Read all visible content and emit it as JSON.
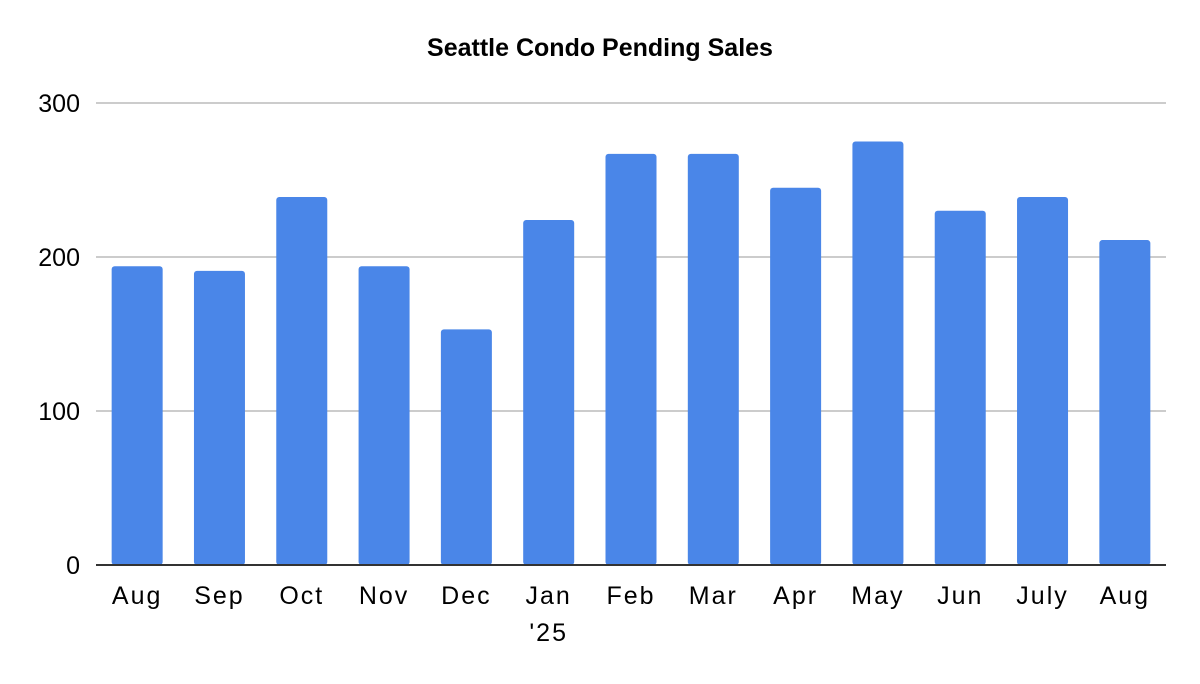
{
  "chart_data": {
    "type": "bar",
    "title": "Seattle Condo Pending Sales",
    "xlabel": "",
    "ylabel": "",
    "categories": [
      "Aug",
      "Sep",
      "Oct",
      "Nov",
      "Dec",
      "Jan\n'25",
      "Feb",
      "Mar",
      "Apr",
      "May",
      "Jun",
      "July",
      "Aug"
    ],
    "values": [
      194,
      191,
      239,
      194,
      153,
      224,
      267,
      267,
      245,
      275,
      230,
      239,
      211
    ],
    "ylim": [
      0,
      300
    ],
    "yticks": [
      0,
      100,
      200,
      300
    ],
    "grid": true,
    "legend": "none",
    "bar_color": "#4a86e8",
    "gridline_color": "#cccccc",
    "axis_color": "#333333"
  }
}
